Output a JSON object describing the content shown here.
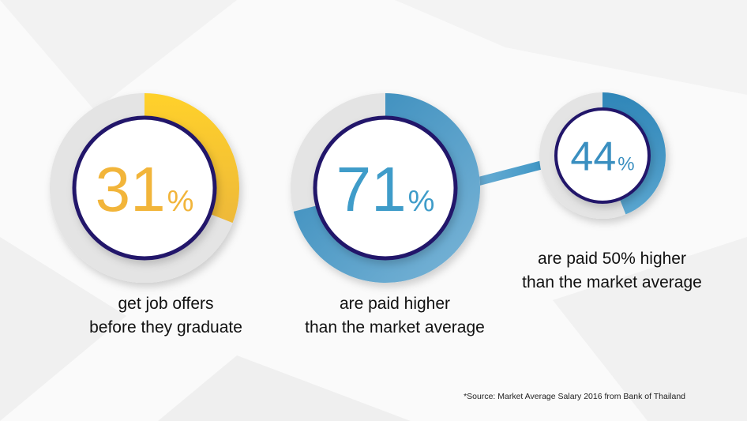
{
  "chart_data": {
    "type": "donut",
    "items": [
      {
        "value": 31,
        "unit": "%",
        "color": "#f5c230",
        "number_color": "#f2b53a",
        "caption_lines": [
          "get job offers",
          "before they graduate"
        ]
      },
      {
        "value": 71,
        "unit": "%",
        "color": "#3d95c4",
        "number_color": "#3f9cc9",
        "caption_lines": [
          "are paid higher",
          "than the market average"
        ]
      },
      {
        "value": 44,
        "unit": "%",
        "color": "#3a93c2",
        "number_color": "#3a8fc0",
        "caption_lines": [
          "are paid 50% higher",
          "than the market average"
        ]
      }
    ],
    "connector": {
      "from": 1,
      "to": 2,
      "color": "#3d95c4"
    },
    "source_note": "*Source: Market Average Salary 2016 from Bank of Thailand"
  },
  "colors": {
    "ring_track": "#e4e4e4",
    "inner_border": "#23186b",
    "inner_fill": "#ffffff"
  }
}
